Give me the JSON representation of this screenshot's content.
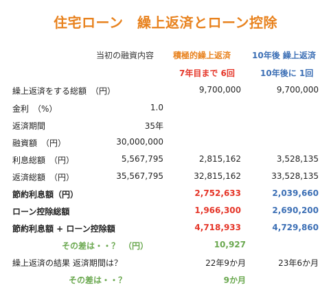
{
  "title": "住宅ローン　繰上返済とローン控除",
  "header": {
    "base": "当初の融資内容",
    "col1": "積極的繰上返済",
    "col2": "10年後 繰上返済",
    "col1_sub": "7年目まで 6回",
    "col2_sub": "10年後に 1回"
  },
  "rows": [
    {
      "label": "繰上返済をする総額　（円）",
      "v0": "",
      "v1": "9,700,000",
      "v2": "9,700,000"
    },
    {
      "label": "金利　（%）",
      "v0": "1.0",
      "v1": "",
      "v2": ""
    },
    {
      "label": "返済期間",
      "v0": "35年",
      "v1": "",
      "v2": ""
    },
    {
      "label": "融資額　（円）",
      "v0": "30,000,000",
      "v1": "",
      "v2": ""
    },
    {
      "label": "利息総額　（円）",
      "v0": "5,567,795",
      "v1": "2,815,162",
      "v2": "3,528,135"
    },
    {
      "label": "返済総額　（円）",
      "v0": "35,567,795",
      "v1": "32,815,162",
      "v2": "33,528,135"
    },
    {
      "label": "節約利息額（円）",
      "v0": "",
      "v1": "2,752,633",
      "v2": "2,039,660"
    },
    {
      "label": "ローン控除総額",
      "v0": "",
      "v1": "1,966,300",
      "v2": "2,690,200"
    },
    {
      "label": "節約利息額 + ローン控除額",
      "v0": "",
      "v1": "4,718,933",
      "v2": "4,729,860"
    }
  ],
  "diff1": {
    "label": "その差は・・？　（円）",
    "value": "10,927"
  },
  "period": {
    "label": "繰上返済の結果 返済期間は？",
    "v1": "22年9か月",
    "v2": "23年6か月"
  },
  "diff2": {
    "label": "その差は・・？",
    "value": "9か月"
  },
  "colors": {
    "orange": "#e8821e",
    "red": "#e53528",
    "blue": "#3c6fb5",
    "green": "#6aa84f"
  }
}
